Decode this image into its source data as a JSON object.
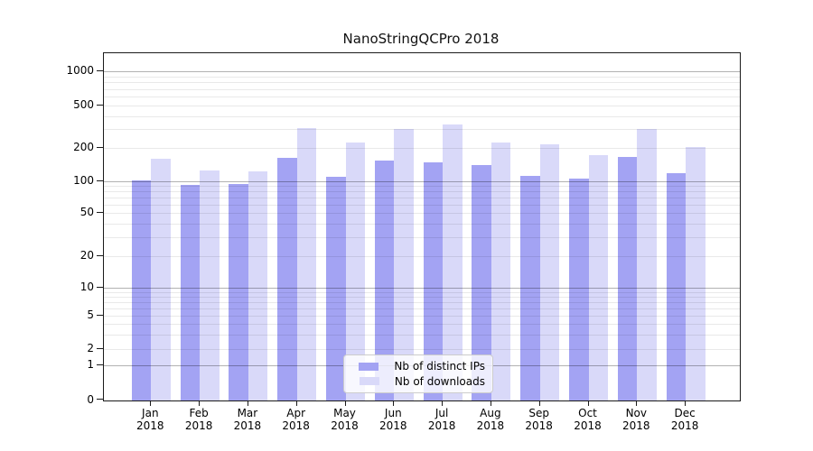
{
  "chart_data": {
    "type": "bar",
    "title": "NanoStringQCPro 2018",
    "categories": [
      "Jan 2018",
      "Feb 2018",
      "Mar 2018",
      "Apr 2018",
      "May 2018",
      "Jun 2018",
      "Jul 2018",
      "Aug 2018",
      "Sep 2018",
      "Oct 2018",
      "Nov 2018",
      "Dec 2018"
    ],
    "series": [
      {
        "name": "Nb of distinct IPs",
        "color": "#a3a3f3",
        "values": [
          101,
          92,
          94,
          164,
          109,
          155,
          149,
          141,
          112,
          105,
          168,
          119
        ]
      },
      {
        "name": "Nb of downloads",
        "color": "#d9d9f9",
        "values": [
          160,
          125,
          122,
          307,
          228,
          305,
          331,
          224,
          216,
          172,
          301,
          205
        ]
      }
    ],
    "yscale": "symlog",
    "yticks": [
      0,
      1,
      2,
      5,
      10,
      20,
      50,
      100,
      200,
      500,
      1000
    ],
    "ylim": [
      0,
      1100
    ],
    "xlabel": "",
    "ylabel": "",
    "grid": "major gridlines at powers of 10, minor log gridlines at 2-9 per decade",
    "legend": {
      "position": "lower center",
      "labels": [
        "Nb of distinct IPs",
        "Nb of downloads"
      ]
    }
  }
}
